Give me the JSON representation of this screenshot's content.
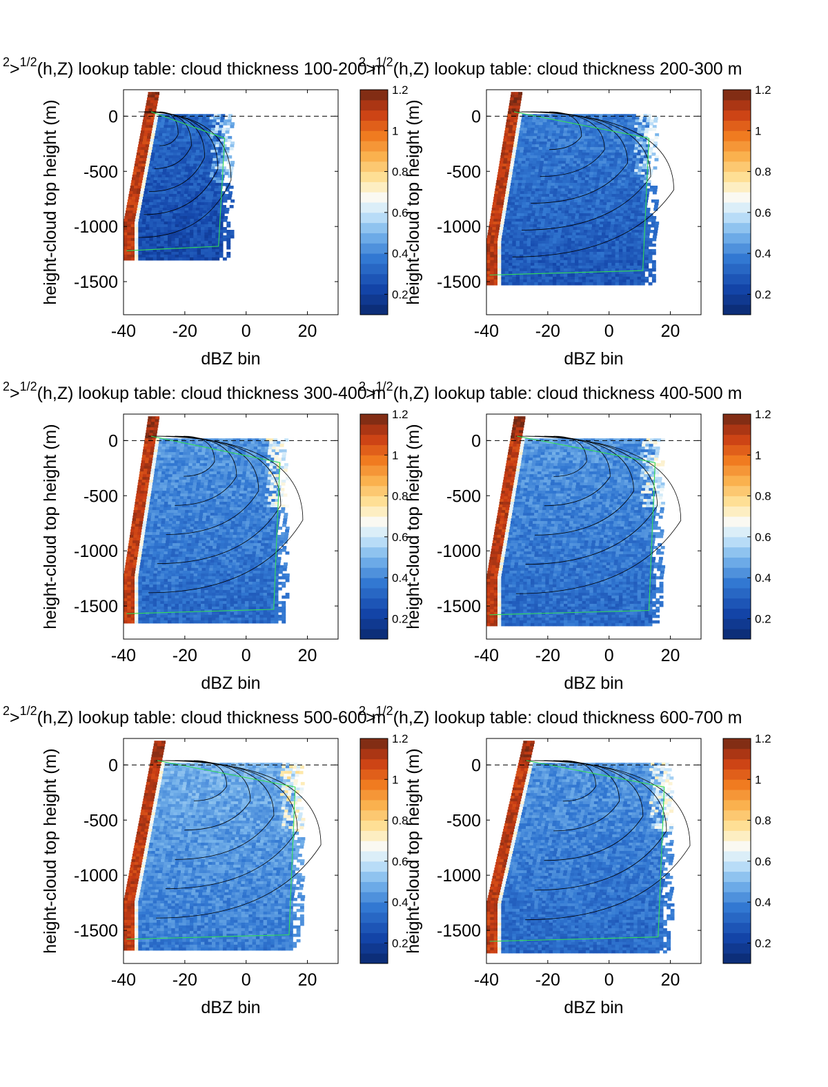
{
  "chart_data": [
    {
      "type": "heatmap",
      "title_main": "(h,Z) lookup table: cloud thickness 100-200 m",
      "title_prefix_sup1": "2",
      "title_prefix_base": ">",
      "title_prefix_sup2": "1/2",
      "xlabel": "dBZ bin",
      "ylabel": "height-cloud top height (m)",
      "xlim": [
        -40,
        30
      ],
      "ylim": [
        -1800,
        240
      ],
      "xticks": [
        -40,
        -20,
        0,
        20
      ],
      "yticks": [
        0,
        -500,
        -1000,
        -1500
      ],
      "colorbar": {
        "range": [
          0.1,
          1.2
        ],
        "ticks": [
          "0.2",
          "0.4",
          "0.6",
          "0.8",
          "1",
          "1.2"
        ]
      },
      "reference_line_y": 0,
      "region": {
        "bottom": -1300,
        "right_x": -5,
        "left_top_x": -32,
        "left_bottom_x": -40,
        "mean_value": 0.35
      }
    },
    {
      "type": "heatmap",
      "title_main": "(h,Z) lookup table: cloud thickness 200-300 m",
      "title_prefix_sup1": "2",
      "title_prefix_base": ">",
      "title_prefix_sup2": "1/2",
      "xlabel": "dBZ bin",
      "ylabel": "height-cloud top height (m)",
      "xlim": [
        -40,
        30
      ],
      "ylim": [
        -1800,
        240
      ],
      "xticks": [
        -40,
        -20,
        0,
        20
      ],
      "yticks": [
        0,
        -500,
        -1000,
        -1500
      ],
      "colorbar": {
        "range": [
          0.1,
          1.2
        ],
        "ticks": [
          "0.2",
          "0.4",
          "0.6",
          "0.8",
          "1",
          "1.2"
        ]
      },
      "reference_line_y": 0,
      "region": {
        "bottom": -1520,
        "right_x": 15,
        "left_top_x": -32,
        "left_bottom_x": -40,
        "mean_value": 0.4
      }
    },
    {
      "type": "heatmap",
      "title_main": "(h,Z) lookup table: cloud thickness 300-400 m",
      "title_prefix_sup1": "2",
      "title_prefix_base": ">",
      "title_prefix_sup2": "1/2",
      "xlabel": "dBZ bin",
      "ylabel": "height-cloud top height (m)",
      "xlim": [
        -40,
        30
      ],
      "ylim": [
        -1800,
        240
      ],
      "xticks": [
        -40,
        -20,
        0,
        20
      ],
      "yticks": [
        0,
        -500,
        -1000,
        -1500
      ],
      "colorbar": {
        "range": [
          0.1,
          1.2
        ],
        "ticks": [
          "0.2",
          "0.4",
          "0.6",
          "0.8",
          "1",
          "1.2"
        ]
      },
      "reference_line_y": 0,
      "region": {
        "bottom": -1650,
        "right_x": 13,
        "left_top_x": -32,
        "left_bottom_x": -40,
        "mean_value": 0.45
      }
    },
    {
      "type": "heatmap",
      "title_main": "(h,Z) lookup table: cloud thickness 400-500 m",
      "title_prefix_sup1": "2",
      "title_prefix_base": ">",
      "title_prefix_sup2": "1/2",
      "xlabel": "dBZ bin",
      "ylabel": "height-cloud top height (m)",
      "xlim": [
        -40,
        30
      ],
      "ylim": [
        -1800,
        240
      ],
      "xticks": [
        -40,
        -20,
        0,
        20
      ],
      "yticks": [
        0,
        -500,
        -1000,
        -1500
      ],
      "colorbar": {
        "range": [
          0.1,
          1.2
        ],
        "ticks": [
          "0.2",
          "0.4",
          "0.6",
          "0.8",
          "1",
          "1.2"
        ]
      },
      "reference_line_y": 0,
      "region": {
        "bottom": -1660,
        "right_x": 17,
        "left_top_x": -31,
        "left_bottom_x": -40,
        "mean_value": 0.45
      }
    },
    {
      "type": "heatmap",
      "title_main": "(h,Z) lookup table: cloud thickness 500-600 m",
      "title_prefix_sup1": "2",
      "title_prefix_base": ">",
      "title_prefix_sup2": "1/2",
      "xlabel": "dBZ bin",
      "ylabel": "height-cloud top height (m)",
      "xlim": [
        -40,
        30
      ],
      "ylim": [
        -1800,
        240
      ],
      "xticks": [
        -40,
        -20,
        0,
        20
      ],
      "yticks": [
        0,
        -500,
        -1000,
        -1500
      ],
      "colorbar": {
        "range": [
          0.1,
          1.2
        ],
        "ticks": [
          "0.2",
          "0.4",
          "0.6",
          "0.8",
          "1",
          "1.2"
        ]
      },
      "reference_line_y": 0,
      "region": {
        "bottom": -1660,
        "right_x": 18,
        "left_top_x": -30,
        "left_bottom_x": -40,
        "mean_value": 0.5
      }
    },
    {
      "type": "heatmap",
      "title_main": "(h,Z) lookup table: cloud thickness 600-700 m",
      "title_prefix_sup1": "2",
      "title_prefix_base": ">",
      "title_prefix_sup2": "1/2",
      "xlabel": "dBZ bin",
      "ylabel": "height-cloud top height (m)",
      "xlim": [
        -40,
        30
      ],
      "ylim": [
        -1800,
        240
      ],
      "xticks": [
        -40,
        -20,
        0,
        20
      ],
      "yticks": [
        0,
        -500,
        -1000,
        -1500
      ],
      "colorbar": {
        "range": [
          0.1,
          1.2
        ],
        "ticks": [
          "0.2",
          "0.4",
          "0.6",
          "0.8",
          "1",
          "1.2"
        ]
      },
      "reference_line_y": 0,
      "region": {
        "bottom": -1680,
        "right_x": 20,
        "left_top_x": -28,
        "left_bottom_x": -40,
        "mean_value": 0.45
      }
    }
  ]
}
